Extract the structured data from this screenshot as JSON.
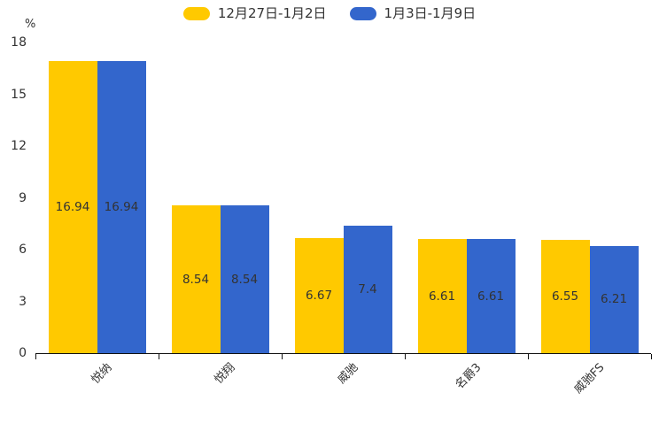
{
  "chart_data": {
    "type": "bar",
    "title": "",
    "ylabel_unit": "%",
    "categories": [
      "悦纳",
      "悦翔",
      "威驰",
      "名爵3",
      "威驰FS"
    ],
    "series": [
      {
        "name": "12月27日-1月2日",
        "color": "#FFC900",
        "values": [
          16.94,
          8.54,
          6.67,
          6.61,
          6.55
        ]
      },
      {
        "name": "1月3日-1月9日",
        "color": "#3366CC",
        "values": [
          16.94,
          8.54,
          7.4,
          6.61,
          6.21
        ]
      }
    ],
    "ylim": [
      0,
      18
    ],
    "yticks": [
      0,
      3,
      6,
      9,
      12,
      15,
      18
    ],
    "grid": false,
    "legend_position": "top",
    "value_labels": "inside-center",
    "label_color": "#333333",
    "axis_color": "#111111"
  }
}
